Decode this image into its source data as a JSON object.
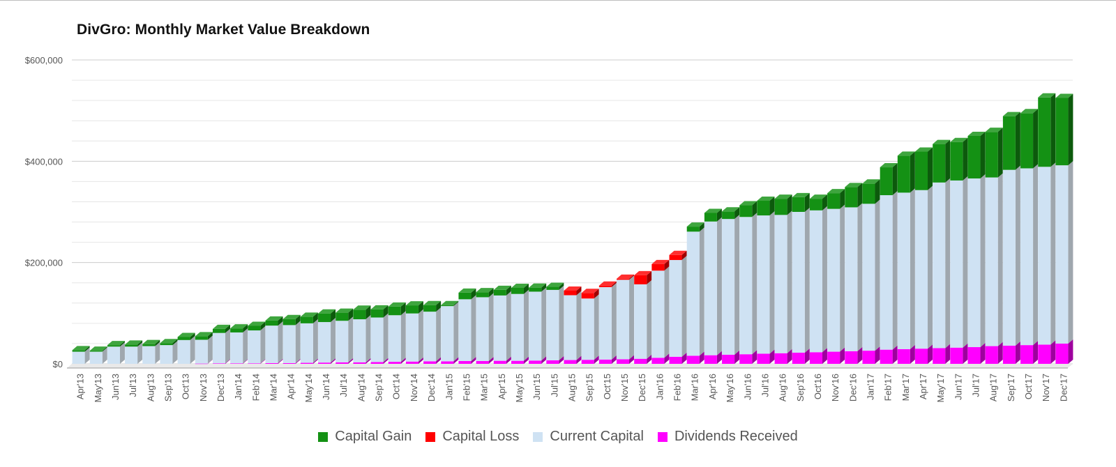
{
  "chart_data": {
    "type": "bar",
    "stacked": true,
    "title": "DivGro: Monthly Market Value Breakdown",
    "xlabel": "",
    "ylabel": "",
    "ylim": [
      0,
      600000
    ],
    "y_ticks": [
      0,
      200000,
      400000,
      600000
    ],
    "y_tick_labels": [
      "$0",
      "$200,000",
      "$400,000",
      "$600,000"
    ],
    "grid": true,
    "legend_position": "bottom",
    "categories": [
      "Apr'13",
      "May'13",
      "Jun'13",
      "Jul'13",
      "Aug'13",
      "Sep'13",
      "Oct'13",
      "Nov'13",
      "Dec'13",
      "Jan'14",
      "Feb'14",
      "Mar'14",
      "Apr'14",
      "May'14",
      "Jun'14",
      "Jul'14",
      "Aug'14",
      "Sep'14",
      "Oct'14",
      "Nov'14",
      "Dec'14",
      "Jan'15",
      "Feb'15",
      "Mar'15",
      "Apr'15",
      "May'15",
      "Jun'15",
      "Jul'15",
      "Aug'15",
      "Sep'15",
      "Oct'15",
      "Nov'15",
      "Dec'15",
      "Jan'16",
      "Feb'16",
      "Mar'16",
      "Apr'16",
      "May'16",
      "Jun'16",
      "Jul'16",
      "Aug'16",
      "Sep'16",
      "Oct'16",
      "Nov'16",
      "Dec'16",
      "Jan'17",
      "Feb'17",
      "Mar'17",
      "Apr'17",
      "May'17",
      "Jun'17",
      "Jul'17",
      "Aug'17",
      "Sep'17",
      "Oct'17",
      "Nov'17",
      "Dec'17"
    ],
    "series": [
      {
        "name": "Dividends Received",
        "color": "#ff00ff",
        "values": [
          0,
          0,
          0,
          0,
          0,
          0,
          0,
          500,
          1000,
          1000,
          1000,
          1500,
          1500,
          2000,
          2500,
          3000,
          3000,
          3500,
          4000,
          4500,
          5000,
          5000,
          5500,
          5500,
          6000,
          6000,
          6500,
          7000,
          7500,
          8000,
          8500,
          9000,
          10000,
          12000,
          14000,
          16000,
          17000,
          18000,
          19000,
          20000,
          21000,
          22000,
          23000,
          24000,
          25000,
          26000,
          28000,
          29000,
          30000,
          31000,
          32000,
          33000,
          35000,
          36000,
          37000,
          38000,
          40000
        ]
      },
      {
        "name": "Current Capital",
        "color": "#cfe2f3",
        "values": [
          24000,
          24000,
          34000,
          34000,
          35000,
          37000,
          47000,
          47000,
          60000,
          61000,
          65000,
          74000,
          75000,
          78000,
          80000,
          82000,
          85000,
          88000,
          92000,
          95000,
          98000,
          109000,
          122000,
          126000,
          129000,
          132000,
          136000,
          139000,
          128000,
          121000,
          143000,
          157000,
          147000,
          172000,
          191000,
          245000,
          264000,
          268000,
          271000,
          273000,
          273000,
          278000,
          280000,
          282000,
          284000,
          290000,
          305000,
          309000,
          313000,
          327000,
          330000,
          333000,
          333000,
          347000,
          349000,
          351000,
          352000
        ]
      },
      {
        "name": "Capital Loss",
        "color": "#ff0000",
        "values": [
          0,
          0,
          0,
          0,
          0,
          0,
          0,
          0,
          0,
          0,
          0,
          0,
          0,
          0,
          0,
          0,
          0,
          0,
          0,
          0,
          0,
          0,
          0,
          0,
          0,
          0,
          0,
          0,
          9000,
          11000,
          3000,
          2000,
          18000,
          13000,
          10000,
          0,
          0,
          0,
          0,
          0,
          0,
          0,
          0,
          0,
          0,
          0,
          0,
          0,
          0,
          0,
          0,
          0,
          0,
          0,
          0,
          0,
          0
        ]
      },
      {
        "name": "Capital Gain",
        "color": "#149114",
        "values": [
          3000,
          2000,
          3000,
          4000,
          4000,
          4000,
          6000,
          7000,
          8000,
          8000,
          9000,
          10000,
          12000,
          13000,
          17000,
          16000,
          19000,
          16000,
          17000,
          16000,
          13000,
          2000,
          13000,
          10000,
          11000,
          12000,
          8000,
          6000,
          0,
          0,
          0,
          0,
          0,
          0,
          0,
          10000,
          17000,
          15000,
          23000,
          29000,
          32000,
          29000,
          23000,
          31000,
          40000,
          40000,
          55000,
          73000,
          76000,
          76000,
          76000,
          84000,
          90000,
          106000,
          109000,
          137000,
          133000
        ]
      }
    ]
  },
  "legend": {
    "items": [
      {
        "label": "Capital Gain",
        "color": "#149114"
      },
      {
        "label": "Capital Loss",
        "color": "#ff0000"
      },
      {
        "label": "Current Capital",
        "color": "#cfe2f3"
      },
      {
        "label": "Dividends Received",
        "color": "#ff00ff"
      }
    ]
  }
}
